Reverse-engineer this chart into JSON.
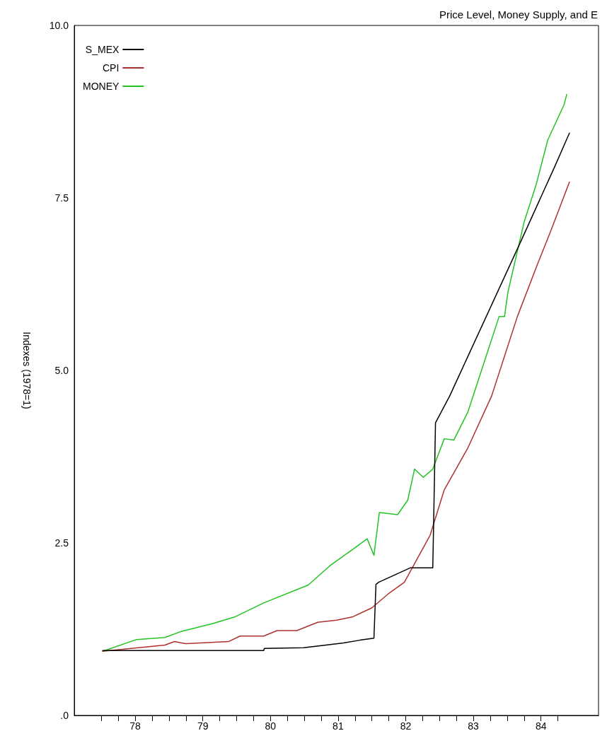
{
  "chart_data": {
    "type": "line",
    "title": "Price Level, Money Supply, and E",
    "ylabel": "Indexes (1978=1)",
    "xlim": [
      77.1,
      84.85
    ],
    "xticks": [
      {
        "value": 77.5,
        "label": null
      },
      {
        "value": 77.75,
        "label": null
      },
      78,
      {
        "value": 78.25,
        "label": null
      },
      {
        "value": 78.5,
        "label": null
      },
      {
        "value": 78.75,
        "label": null
      },
      79,
      {
        "value": 79.25,
        "label": null
      },
      {
        "value": 79.5,
        "label": null
      },
      {
        "value": 79.75,
        "label": null
      },
      80,
      {
        "value": 80.25,
        "label": null
      },
      {
        "value": 80.5,
        "label": null
      },
      {
        "value": 80.75,
        "label": null
      },
      81,
      {
        "value": 81.25,
        "label": null
      },
      {
        "value": 81.5,
        "label": null
      },
      {
        "value": 81.75,
        "label": null
      },
      82,
      {
        "value": 82.25,
        "label": null
      },
      {
        "value": 82.5,
        "label": null
      },
      {
        "value": 82.75,
        "label": null
      },
      83,
      {
        "value": 83.25,
        "label": null
      },
      {
        "value": 83.5,
        "label": null
      },
      {
        "value": 83.75,
        "label": null
      },
      84,
      {
        "value": 84.25,
        "label": null
      }
    ],
    "ylim": [
      0,
      10
    ],
    "yticks": [
      {
        "value": 0,
        "label": ".0"
      },
      {
        "value": 2.5,
        "label": "2.5"
      },
      {
        "value": 5,
        "label": "5.0"
      },
      {
        "value": 7.5,
        "label": "7.5"
      },
      {
        "value": 10,
        "label": "10.0"
      }
    ],
    "grid": false,
    "legend": "top left",
    "marker": "none",
    "line_style": "solid",
    "series": [
      {
        "name": "S_MEX",
        "color": "#000000",
        "x": [
          77.52,
          79.9,
          79.91,
          80.49,
          80.82,
          81.08,
          81.32,
          81.53,
          81.56,
          81.6,
          82.07,
          82.4,
          82.44,
          82.65,
          83.72,
          84.21,
          84.42
        ],
        "values": [
          0.94,
          0.94,
          0.97,
          0.98,
          1.02,
          1.05,
          1.09,
          1.12,
          1.9,
          1.93,
          2.14,
          2.14,
          4.24,
          4.63,
          6.91,
          7.97,
          8.44
        ]
      },
      {
        "name": "CPI",
        "color": "#b03030",
        "x": [
          77.52,
          78.44,
          78.58,
          78.75,
          79.38,
          79.55,
          79.9,
          80.1,
          80.39,
          80.7,
          80.98,
          81.22,
          81.5,
          81.74,
          81.98,
          82.36,
          82.57,
          82.92,
          83.27,
          83.65,
          83.96,
          84.14,
          84.42
        ],
        "values": [
          0.93,
          1.02,
          1.07,
          1.04,
          1.07,
          1.15,
          1.15,
          1.23,
          1.23,
          1.35,
          1.38,
          1.43,
          1.56,
          1.76,
          1.93,
          2.61,
          3.27,
          3.88,
          4.63,
          5.78,
          6.57,
          7.01,
          7.73
        ]
      },
      {
        "name": "MONEY",
        "color": "#22c422",
        "x": [
          77.52,
          78.02,
          78.44,
          78.69,
          79.14,
          79.48,
          79.9,
          80.56,
          80.88,
          81.22,
          81.43,
          81.53,
          81.61,
          81.88,
          82.03,
          82.13,
          82.26,
          82.4,
          82.57,
          82.71,
          82.92,
          83.38,
          83.46,
          83.51,
          83.75,
          83.93,
          84.1,
          84.34,
          84.38
        ],
        "values": [
          0.93,
          1.1,
          1.13,
          1.22,
          1.33,
          1.43,
          1.63,
          1.89,
          2.17,
          2.41,
          2.56,
          2.32,
          2.94,
          2.91,
          3.12,
          3.57,
          3.45,
          3.57,
          4.01,
          3.99,
          4.4,
          5.78,
          5.78,
          6.13,
          7.15,
          7.7,
          8.34,
          8.85,
          9.0
        ]
      }
    ]
  }
}
